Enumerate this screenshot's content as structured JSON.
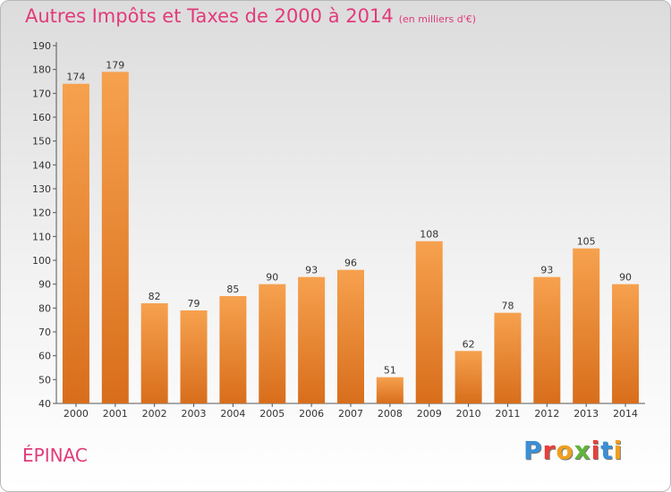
{
  "header": {
    "title": "Autres Impôts et Taxes de 2000 à 2014",
    "unit": "(en milliers d'€)"
  },
  "footer": {
    "commune": "ÉPINAC",
    "logo_letters": [
      "P",
      "r",
      "o",
      "x",
      "i",
      "t",
      "i"
    ]
  },
  "colors": {
    "title": "#e23a7a",
    "bar_light": "#f6a14e",
    "bar_dark": "#d86e1c",
    "logo": [
      "#3a8fd6",
      "#e8403a",
      "#f0a020",
      "#62b43a",
      "#e8403a",
      "#3a8fd6",
      "#f0a020"
    ]
  },
  "chart_data": {
    "type": "bar",
    "title": "Autres Impôts et Taxes de 2000 à 2014",
    "subtitle": "(en milliers d'€)",
    "categories": [
      "2000",
      "2001",
      "2002",
      "2003",
      "2004",
      "2005",
      "2006",
      "2007",
      "2008",
      "2009",
      "2010",
      "2011",
      "2012",
      "2013",
      "2014"
    ],
    "values": [
      174,
      179,
      82,
      79,
      85,
      90,
      93,
      96,
      51,
      108,
      62,
      78,
      93,
      105,
      90
    ],
    "ylim": [
      40,
      190
    ],
    "yticks": [
      40,
      50,
      60,
      70,
      80,
      90,
      100,
      110,
      120,
      130,
      140,
      150,
      160,
      170,
      180,
      190
    ],
    "xlabel": "",
    "ylabel": "",
    "grid": false
  }
}
